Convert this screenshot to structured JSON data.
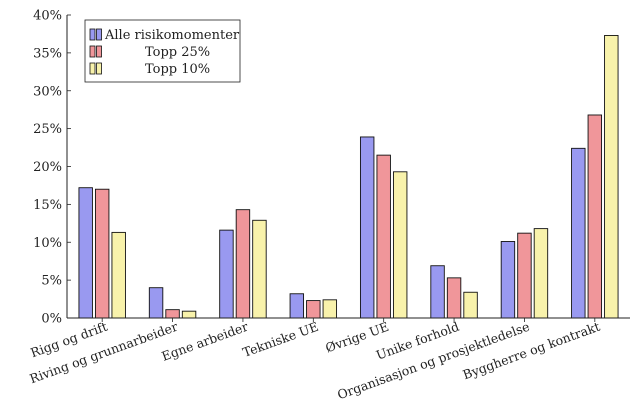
{
  "chart_data": {
    "type": "bar",
    "title": "",
    "xlabel": "",
    "ylabel": "",
    "ylim": [
      0,
      40
    ],
    "y_ticks": [
      0,
      5,
      10,
      15,
      20,
      25,
      30,
      35,
      40
    ],
    "y_tick_suffix": "%",
    "grid": false,
    "legend_position": "top-left",
    "categories": [
      "Rigg og drift",
      "Riving og grunnarbeider",
      "Egne arbeider",
      "Tekniske UE",
      "Øvrige UE",
      "Unike forhold",
      "Organisasjon og prosjektledelse",
      "Byggherre og kontrakt"
    ],
    "series": [
      {
        "name": "Alle risikomomenter",
        "color": "#9999f0",
        "values": [
          17.2,
          4.0,
          11.6,
          3.2,
          23.9,
          6.9,
          10.1,
          22.4
        ]
      },
      {
        "name": "Topp 25%",
        "color": "#f0969a",
        "values": [
          17.0,
          1.1,
          14.3,
          2.3,
          21.5,
          5.3,
          11.2,
          26.8
        ]
      },
      {
        "name": "Topp 10%",
        "color": "#f8f2ab",
        "values": [
          11.3,
          0.9,
          12.9,
          2.4,
          19.3,
          3.4,
          11.8,
          37.3
        ]
      }
    ]
  }
}
